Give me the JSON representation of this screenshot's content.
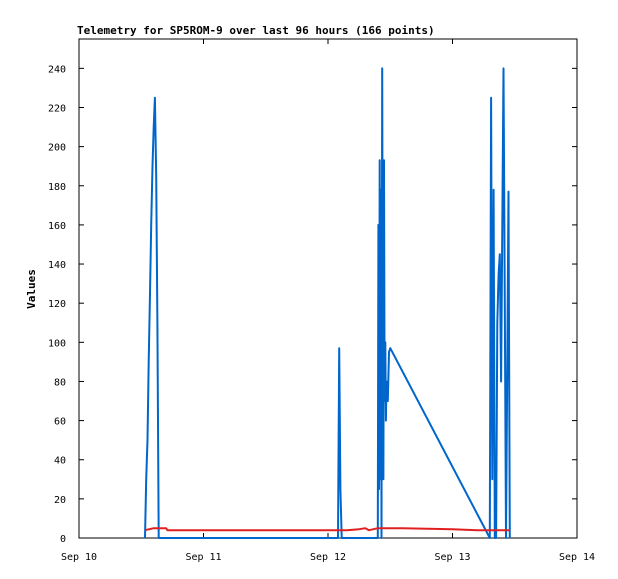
{
  "chart_data": {
    "type": "line",
    "title": "Telemetry for SP5ROM-9 over last 96 hours (166 points)",
    "xlabel": "",
    "ylabel": "Values",
    "xlim": [
      0,
      4
    ],
    "ylim": [
      0,
      255
    ],
    "x_ticks": [
      {
        "value": 0,
        "label": "Sep 10"
      },
      {
        "value": 1,
        "label": "Sep 11"
      },
      {
        "value": 2,
        "label": "Sep 12"
      },
      {
        "value": 3,
        "label": "Sep 13"
      },
      {
        "value": 4,
        "label": "Sep 14"
      }
    ],
    "y_ticks": [
      0,
      20,
      40,
      60,
      80,
      100,
      120,
      140,
      160,
      180,
      200,
      220,
      240
    ],
    "grid": false,
    "legend": "none",
    "series": [
      {
        "color": "#0066cc",
        "points": [
          [
            0.53,
            0
          ],
          [
            0.54,
            30
          ],
          [
            0.55,
            50
          ],
          [
            0.56,
            90
          ],
          [
            0.57,
            125
          ],
          [
            0.58,
            160
          ],
          [
            0.59,
            190
          ],
          [
            0.6,
            210
          ],
          [
            0.61,
            225
          ],
          [
            0.62,
            185
          ],
          [
            0.63,
            110
          ],
          [
            0.64,
            0
          ],
          [
            2.08,
            0
          ],
          [
            2.09,
            97
          ],
          [
            2.1,
            25
          ],
          [
            2.11,
            0
          ],
          [
            2.4,
            0
          ],
          [
            2.405,
            160
          ],
          [
            2.41,
            25
          ],
          [
            2.415,
            193
          ],
          [
            2.42,
            30
          ],
          [
            2.425,
            178
          ],
          [
            2.43,
            0
          ],
          [
            2.435,
            240
          ],
          [
            2.44,
            95
          ],
          [
            2.445,
            30
          ],
          [
            2.45,
            193
          ],
          [
            2.455,
            70
          ],
          [
            2.46,
            100
          ],
          [
            2.465,
            60
          ],
          [
            2.47,
            80
          ],
          [
            2.48,
            70
          ],
          [
            2.49,
            95
          ],
          [
            2.5,
            97
          ],
          [
            3.3,
            0
          ],
          [
            3.31,
            225
          ],
          [
            3.32,
            30
          ],
          [
            3.33,
            178
          ],
          [
            3.34,
            0
          ],
          [
            3.35,
            0
          ],
          [
            3.36,
            110
          ],
          [
            3.37,
            135
          ],
          [
            3.38,
            145
          ],
          [
            3.39,
            80
          ],
          [
            3.4,
            160
          ],
          [
            3.41,
            240
          ],
          [
            3.42,
            120
          ],
          [
            3.43,
            0
          ],
          [
            3.44,
            90
          ],
          [
            3.45,
            177
          ],
          [
            3.46,
            0
          ]
        ]
      },
      {
        "color": "#e02020",
        "points": [
          [
            0.53,
            4
          ],
          [
            0.6,
            5
          ],
          [
            0.7,
            5
          ],
          [
            0.71,
            4
          ],
          [
            2.15,
            4
          ],
          [
            2.25,
            4.5
          ],
          [
            2.3,
            5
          ],
          [
            2.33,
            4
          ],
          [
            2.4,
            5
          ],
          [
            2.6,
            5
          ],
          [
            3.0,
            4.5
          ],
          [
            3.2,
            4
          ],
          [
            3.46,
            4
          ]
        ]
      }
    ]
  }
}
